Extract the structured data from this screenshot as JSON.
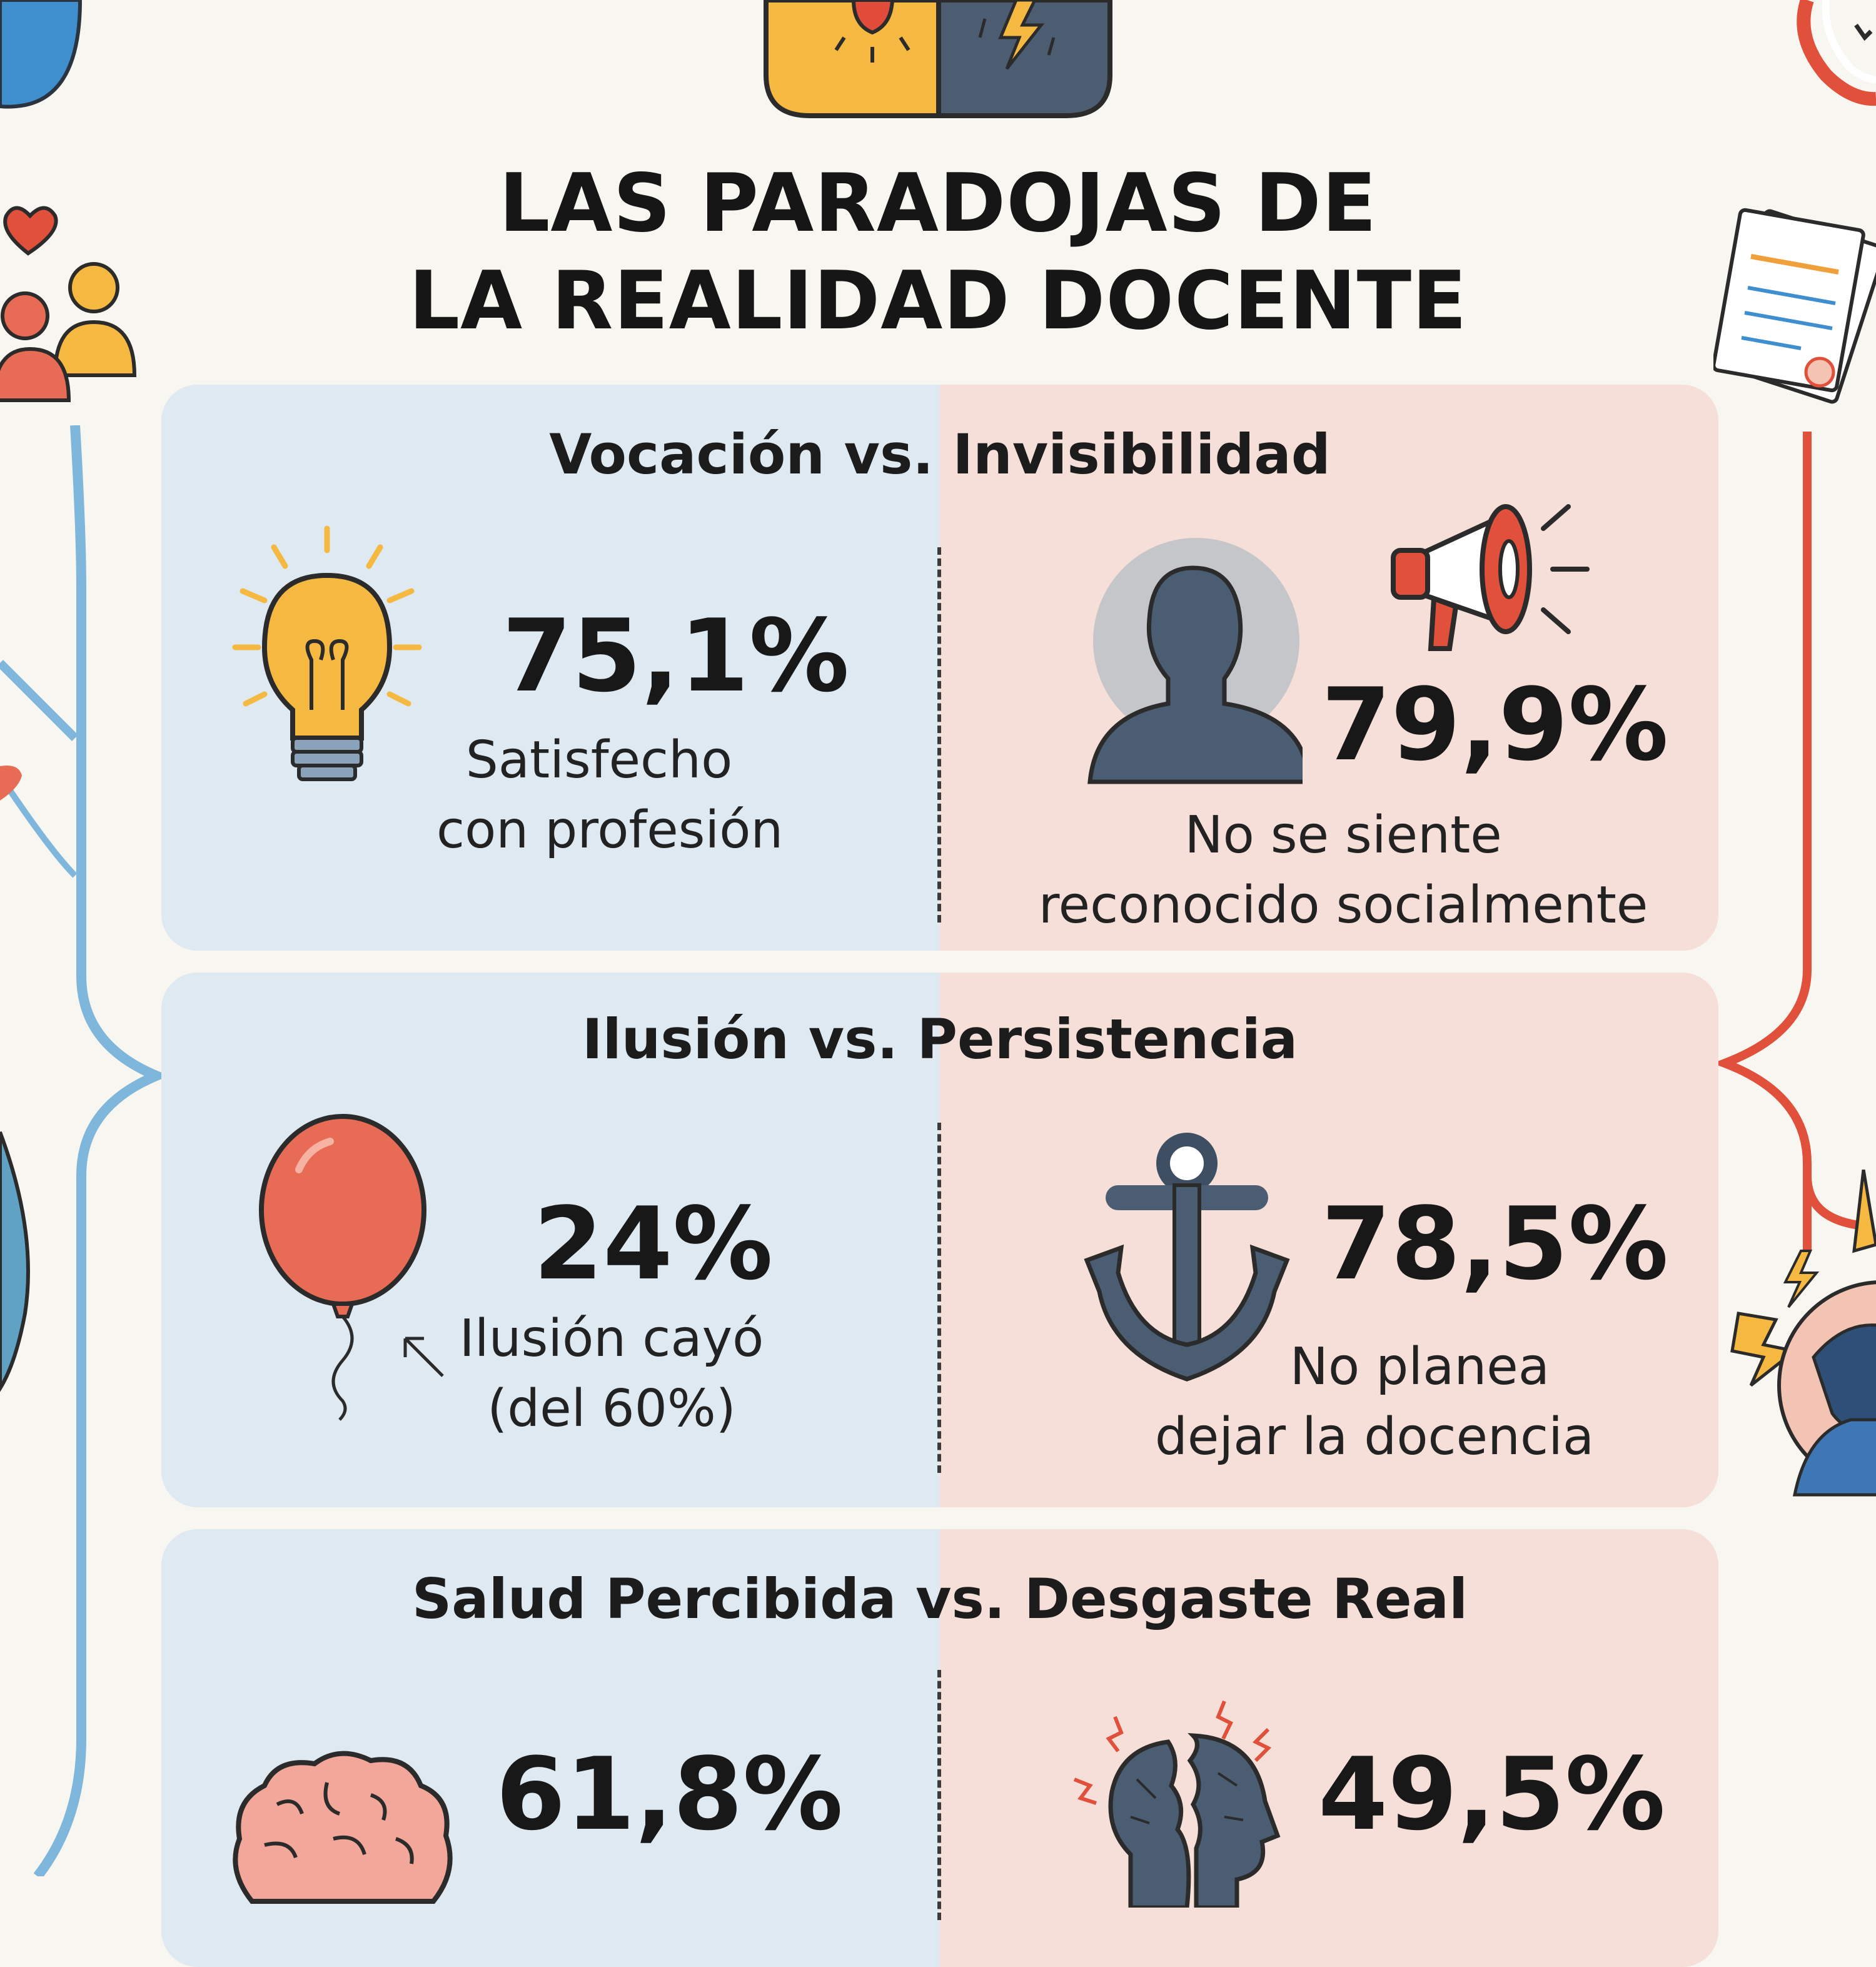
{
  "title": {
    "line1": "LAS PARADOJAS DE",
    "line2": "LA REALIDAD DOCENTE"
  },
  "paradoxes": [
    {
      "title": "Vocación vs. Invisibilidad",
      "left": {
        "value": "75,1%",
        "desc1": "Satisfecho",
        "desc2": "con profesión",
        "icon": "lightbulb-icon"
      },
      "right": {
        "value": "79,9%",
        "desc1": "No se siente",
        "desc2": "reconocido socialmente",
        "icon": "faceless-person-icon"
      }
    },
    {
      "title": "Ilusión vs. Persistencia",
      "left": {
        "value": "24%",
        "desc1": "Ilusión cayó",
        "desc2": "(del 60%)",
        "icon": "balloon-icon"
      },
      "right": {
        "value": "78,5%",
        "desc1": "No planea",
        "desc2": "dejar la docencia",
        "icon": "anchor-icon"
      }
    },
    {
      "title": "Salud Percibida vs. Desgaste Real",
      "left": {
        "value": "61,8%",
        "icon": "brain-icon"
      },
      "right": {
        "value": "49,5%",
        "icon": "cracked-head-icon"
      }
    }
  ],
  "colors": {
    "left_panel": "#dfe9f1",
    "right_panel": "#f6dfd8",
    "blue_accent": "#7fb6dc",
    "red_accent": "#e0503a",
    "yellow_accent": "#f4b63c",
    "slate": "#4b5d72"
  }
}
